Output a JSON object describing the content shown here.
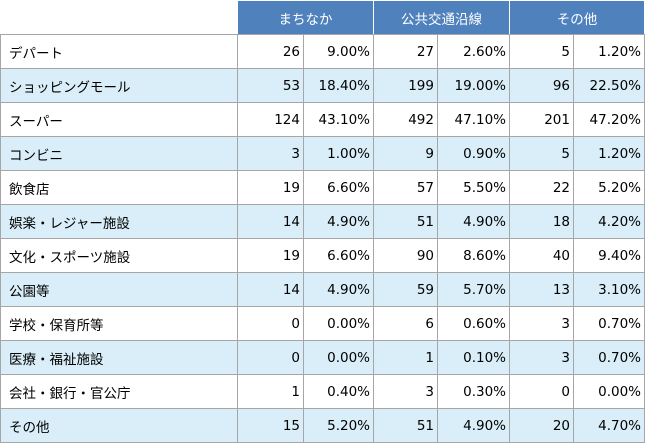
{
  "header": {
    "groups": [
      "まちなか",
      "公共交通沿線",
      "その他"
    ]
  },
  "rows": [
    {
      "category": "デパート",
      "g1_count": "26",
      "g1_pct": "9.00%",
      "g2_count": "27",
      "g2_pct": "2.60%",
      "g3_count": "5",
      "g3_pct": "1.20%"
    },
    {
      "category": "ショッピングモール",
      "g1_count": "53",
      "g1_pct": "18.40%",
      "g2_count": "199",
      "g2_pct": "19.00%",
      "g3_count": "96",
      "g3_pct": "22.50%"
    },
    {
      "category": "スーパー",
      "g1_count": "124",
      "g1_pct": "43.10%",
      "g2_count": "492",
      "g2_pct": "47.10%",
      "g3_count": "201",
      "g3_pct": "47.20%"
    },
    {
      "category": "コンビニ",
      "g1_count": "3",
      "g1_pct": "1.00%",
      "g2_count": "9",
      "g2_pct": "0.90%",
      "g3_count": "5",
      "g3_pct": "1.20%"
    },
    {
      "category": "飲食店",
      "g1_count": "19",
      "g1_pct": "6.60%",
      "g2_count": "57",
      "g2_pct": "5.50%",
      "g3_count": "22",
      "g3_pct": "5.20%"
    },
    {
      "category": "娯楽・レジャー施設",
      "g1_count": "14",
      "g1_pct": "4.90%",
      "g2_count": "51",
      "g2_pct": "4.90%",
      "g3_count": "18",
      "g3_pct": "4.20%"
    },
    {
      "category": "文化・スポーツ施設",
      "g1_count": "19",
      "g1_pct": "6.60%",
      "g2_count": "90",
      "g2_pct": "8.60%",
      "g3_count": "40",
      "g3_pct": "9.40%"
    },
    {
      "category": "公園等",
      "g1_count": "14",
      "g1_pct": "4.90%",
      "g2_count": "59",
      "g2_pct": "5.70%",
      "g3_count": "13",
      "g3_pct": "3.10%"
    },
    {
      "category": "学校・保育所等",
      "g1_count": "0",
      "g1_pct": "0.00%",
      "g2_count": "6",
      "g2_pct": "0.60%",
      "g3_count": "3",
      "g3_pct": "0.70%"
    },
    {
      "category": "医療・福祉施設",
      "g1_count": "0",
      "g1_pct": "0.00%",
      "g2_count": "1",
      "g2_pct": "0.10%",
      "g3_count": "3",
      "g3_pct": "0.70%"
    },
    {
      "category": "会社・銀行・官公庁",
      "g1_count": "1",
      "g1_pct": "0.40%",
      "g2_count": "3",
      "g2_pct": "0.30%",
      "g3_count": "0",
      "g3_pct": "0.00%"
    },
    {
      "category": "その他",
      "g1_count": "15",
      "g1_pct": "5.20%",
      "g2_count": "51",
      "g2_pct": "4.90%",
      "g3_count": "20",
      "g3_pct": "4.70%"
    }
  ]
}
